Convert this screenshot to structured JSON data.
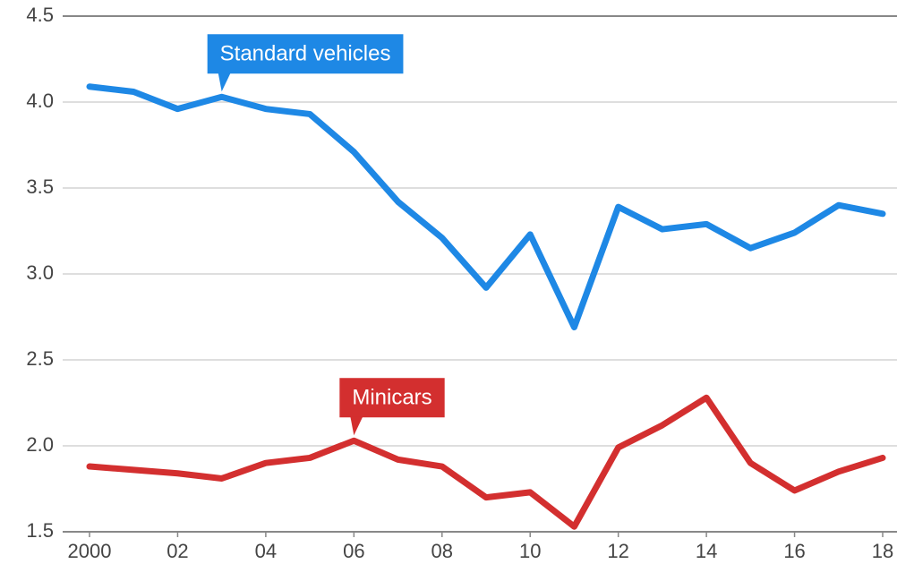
{
  "chart_data": {
    "type": "line",
    "x": [
      2000,
      2001,
      2002,
      2003,
      2004,
      2005,
      2006,
      2007,
      2008,
      2009,
      2010,
      2011,
      2012,
      2013,
      2014,
      2015,
      2016,
      2017,
      2018
    ],
    "series": [
      {
        "name": "Standard vehicles",
        "color": "#1e88e5",
        "values": [
          4.09,
          4.06,
          3.96,
          4.03,
          3.96,
          3.93,
          3.71,
          3.42,
          3.21,
          2.92,
          3.23,
          2.69,
          3.39,
          3.26,
          3.29,
          3.15,
          3.24,
          3.4,
          3.35
        ]
      },
      {
        "name": "Minicars",
        "color": "#d32f2f",
        "values": [
          1.88,
          1.86,
          1.84,
          1.81,
          1.9,
          1.93,
          2.03,
          1.92,
          1.88,
          1.7,
          1.73,
          1.53,
          1.99,
          2.12,
          2.28,
          1.9,
          1.74,
          1.85,
          1.93
        ]
      }
    ],
    "xlim": [
      2000,
      2018
    ],
    "xticks": [
      2000,
      {
        "value": 2002,
        "label": "02"
      },
      {
        "value": 2004,
        "label": "04"
      },
      {
        "value": 2006,
        "label": "06"
      },
      {
        "value": 2008,
        "label": "08"
      },
      {
        "value": 2010,
        "label": "10"
      },
      {
        "value": 2012,
        "label": "12"
      },
      {
        "value": 2014,
        "label": "14"
      },
      {
        "value": 2016,
        "label": "16"
      },
      {
        "value": 2018,
        "label": "18"
      }
    ],
    "ylim": [
      1.5,
      4.5
    ],
    "yticks": [
      {
        "value": 1.5,
        "label": "1.5"
      },
      {
        "value": 2.0,
        "label": "2.0"
      },
      {
        "value": 2.5,
        "label": "2.5"
      },
      {
        "value": 3.0,
        "label": "3.0"
      },
      {
        "value": 3.5,
        "label": "3.5"
      },
      {
        "value": 4.0,
        "label": "4.0"
      },
      {
        "value": 4.5,
        "label": "4.5"
      }
    ],
    "grid": true
  }
}
